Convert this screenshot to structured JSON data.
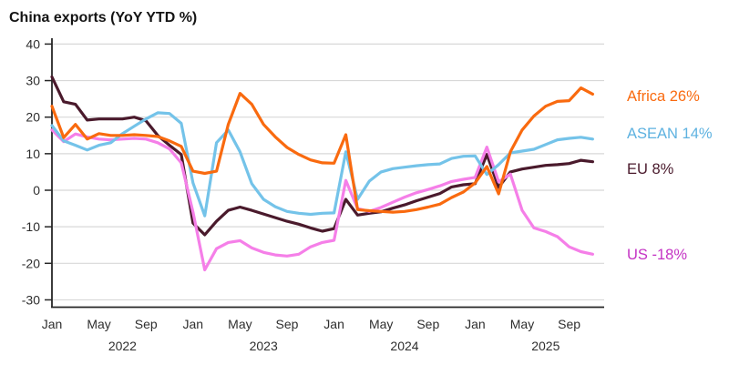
{
  "title": "China exports (YoY YTD %)",
  "chart_data": {
    "type": "line",
    "title": "China exports (YoY YTD %)",
    "xlabel": "",
    "ylabel": "YoY YTD %",
    "ylim": [
      -30,
      40
    ],
    "grid": "horizontal",
    "legend_position": "right",
    "background_color": "#ffffff",
    "grid_color": "#d8d8d8",
    "axis_line_color": "#262626",
    "axis_text_color": "#2e2e2e",
    "yticks": [
      40,
      30,
      20,
      10,
      0,
      -10,
      -20,
      -30
    ],
    "xticks": [
      {
        "i": 0,
        "label": "Jan"
      },
      {
        "i": 4,
        "label": "May"
      },
      {
        "i": 8,
        "label": "Sep"
      },
      {
        "i": 12,
        "label": "Jan"
      },
      {
        "i": 16,
        "label": "May"
      },
      {
        "i": 20,
        "label": "Sep"
      },
      {
        "i": 24,
        "label": "Jan"
      },
      {
        "i": 28,
        "label": "May"
      },
      {
        "i": 32,
        "label": "Sep"
      },
      {
        "i": 36,
        "label": "Jan"
      },
      {
        "i": 40,
        "label": "May"
      },
      {
        "i": 44,
        "label": "Sep"
      }
    ],
    "year_labels": [
      {
        "i": 6,
        "label": "2022"
      },
      {
        "i": 18,
        "label": "2023"
      },
      {
        "i": 30,
        "label": "2024"
      },
      {
        "i": 42,
        "label": "2025"
      }
    ],
    "x": [
      "Jan 2022",
      "Feb 2022",
      "Mar 2022",
      "Apr 2022",
      "May 2022",
      "Jun 2022",
      "Jul 2022",
      "Aug 2022",
      "Sep 2022",
      "Oct 2022",
      "Nov 2022",
      "Dec 2022",
      "Jan 2023",
      "Feb 2023",
      "Mar 2023",
      "Apr 2023",
      "May 2023",
      "Jun 2023",
      "Jul 2023",
      "Aug 2023",
      "Sep 2023",
      "Oct 2023",
      "Nov 2023",
      "Dec 2023",
      "Jan 2024",
      "Feb 2024",
      "Mar 2024",
      "Apr 2024",
      "May 2024",
      "Jun 2024",
      "Jul 2024",
      "Aug 2024",
      "Sep 2024",
      "Oct 2024",
      "Nov 2024",
      "Dec 2024",
      "Jan 2025",
      "Feb 2025",
      "Mar 2025",
      "Apr 2025",
      "May 2025",
      "Jun 2025",
      "Jul 2025",
      "Aug 2025",
      "Sep 2025",
      "Oct 2025",
      "Nov 2025"
    ],
    "series": [
      {
        "name": "Africa",
        "label": "Africa 26%",
        "latest": 26,
        "color": "#F96A0F",
        "legend_color": "#F96A0F",
        "values": [
          23,
          14.4,
          18,
          14,
          15.5,
          15,
          15,
          15.2,
          15,
          14.7,
          13.5,
          12,
          5.2,
          4.6,
          5.2,
          18,
          26.5,
          23.5,
          18,
          14.6,
          11.7,
          9.8,
          8.3,
          7.5,
          7.4,
          15.2,
          -5.3,
          -5.6,
          -5.8,
          -6,
          -5.8,
          -5.3,
          -4.6,
          -3.8,
          -2,
          -0.5,
          2,
          6.5,
          -1,
          10.5,
          16.5,
          20.3,
          23,
          24.3,
          24.5,
          28,
          26.3
        ]
      },
      {
        "name": "ASEAN",
        "label": "ASEAN 14%",
        "latest": 14,
        "color": "#74C3E9",
        "legend_color": "#5EB2E0",
        "values": [
          17.7,
          13.5,
          12.3,
          11,
          12.3,
          13,
          15.5,
          17.5,
          19.5,
          21.2,
          21,
          18.3,
          2,
          -7,
          13,
          16.5,
          10.5,
          1.8,
          -2.5,
          -4.5,
          -5.8,
          -6.3,
          -6.6,
          -6.3,
          -6.2,
          10.5,
          -2.5,
          2.5,
          5,
          5.9,
          6.3,
          6.7,
          7,
          7.2,
          8.7,
          9.3,
          9.4,
          4.3,
          7,
          10.2,
          10.7,
          11.2,
          12.5,
          13.8,
          14.2,
          14.5,
          14
        ]
      },
      {
        "name": "EU",
        "label": "EU 8%",
        "latest": 8,
        "color": "#4A1A2C",
        "legend_color": "#4A1A2C",
        "values": [
          31,
          24.2,
          23.5,
          19.2,
          19.5,
          19.5,
          19.5,
          20,
          19,
          15,
          12.3,
          9.8,
          -9,
          -12.2,
          -8.5,
          -5.5,
          -4.6,
          -5.5,
          -6.5,
          -7.5,
          -8.5,
          -9.3,
          -10.3,
          -11.2,
          -10.5,
          -2.5,
          -6.8,
          -6.3,
          -5.9,
          -4.9,
          -4,
          -2.9,
          -1.9,
          -0.9,
          0.9,
          1.5,
          1.8,
          9.8,
          0.8,
          5,
          5.8,
          6.3,
          6.8,
          7,
          7.3,
          8.2,
          7.8
        ]
      },
      {
        "name": "US",
        "label": "US -18%",
        "latest": -18,
        "color": "#F57FE8",
        "legend_color": "#C433C4",
        "values": [
          16.5,
          13.3,
          15.4,
          14.6,
          14,
          13.8,
          14,
          14.2,
          14,
          13,
          11.3,
          7.5,
          -6,
          -21.8,
          -16,
          -14.3,
          -13.8,
          -15.8,
          -17,
          -17.7,
          -18,
          -17.5,
          -15.5,
          -14.3,
          -13.7,
          2.7,
          -5,
          -5.8,
          -4.7,
          -3.3,
          -1.9,
          -0.7,
          0.2,
          1.2,
          2.4,
          3,
          3.5,
          11.8,
          2.3,
          4.4,
          -5.5,
          -10.3,
          -11.3,
          -12.7,
          -15.5,
          -16.8,
          -17.5
        ]
      }
    ]
  }
}
